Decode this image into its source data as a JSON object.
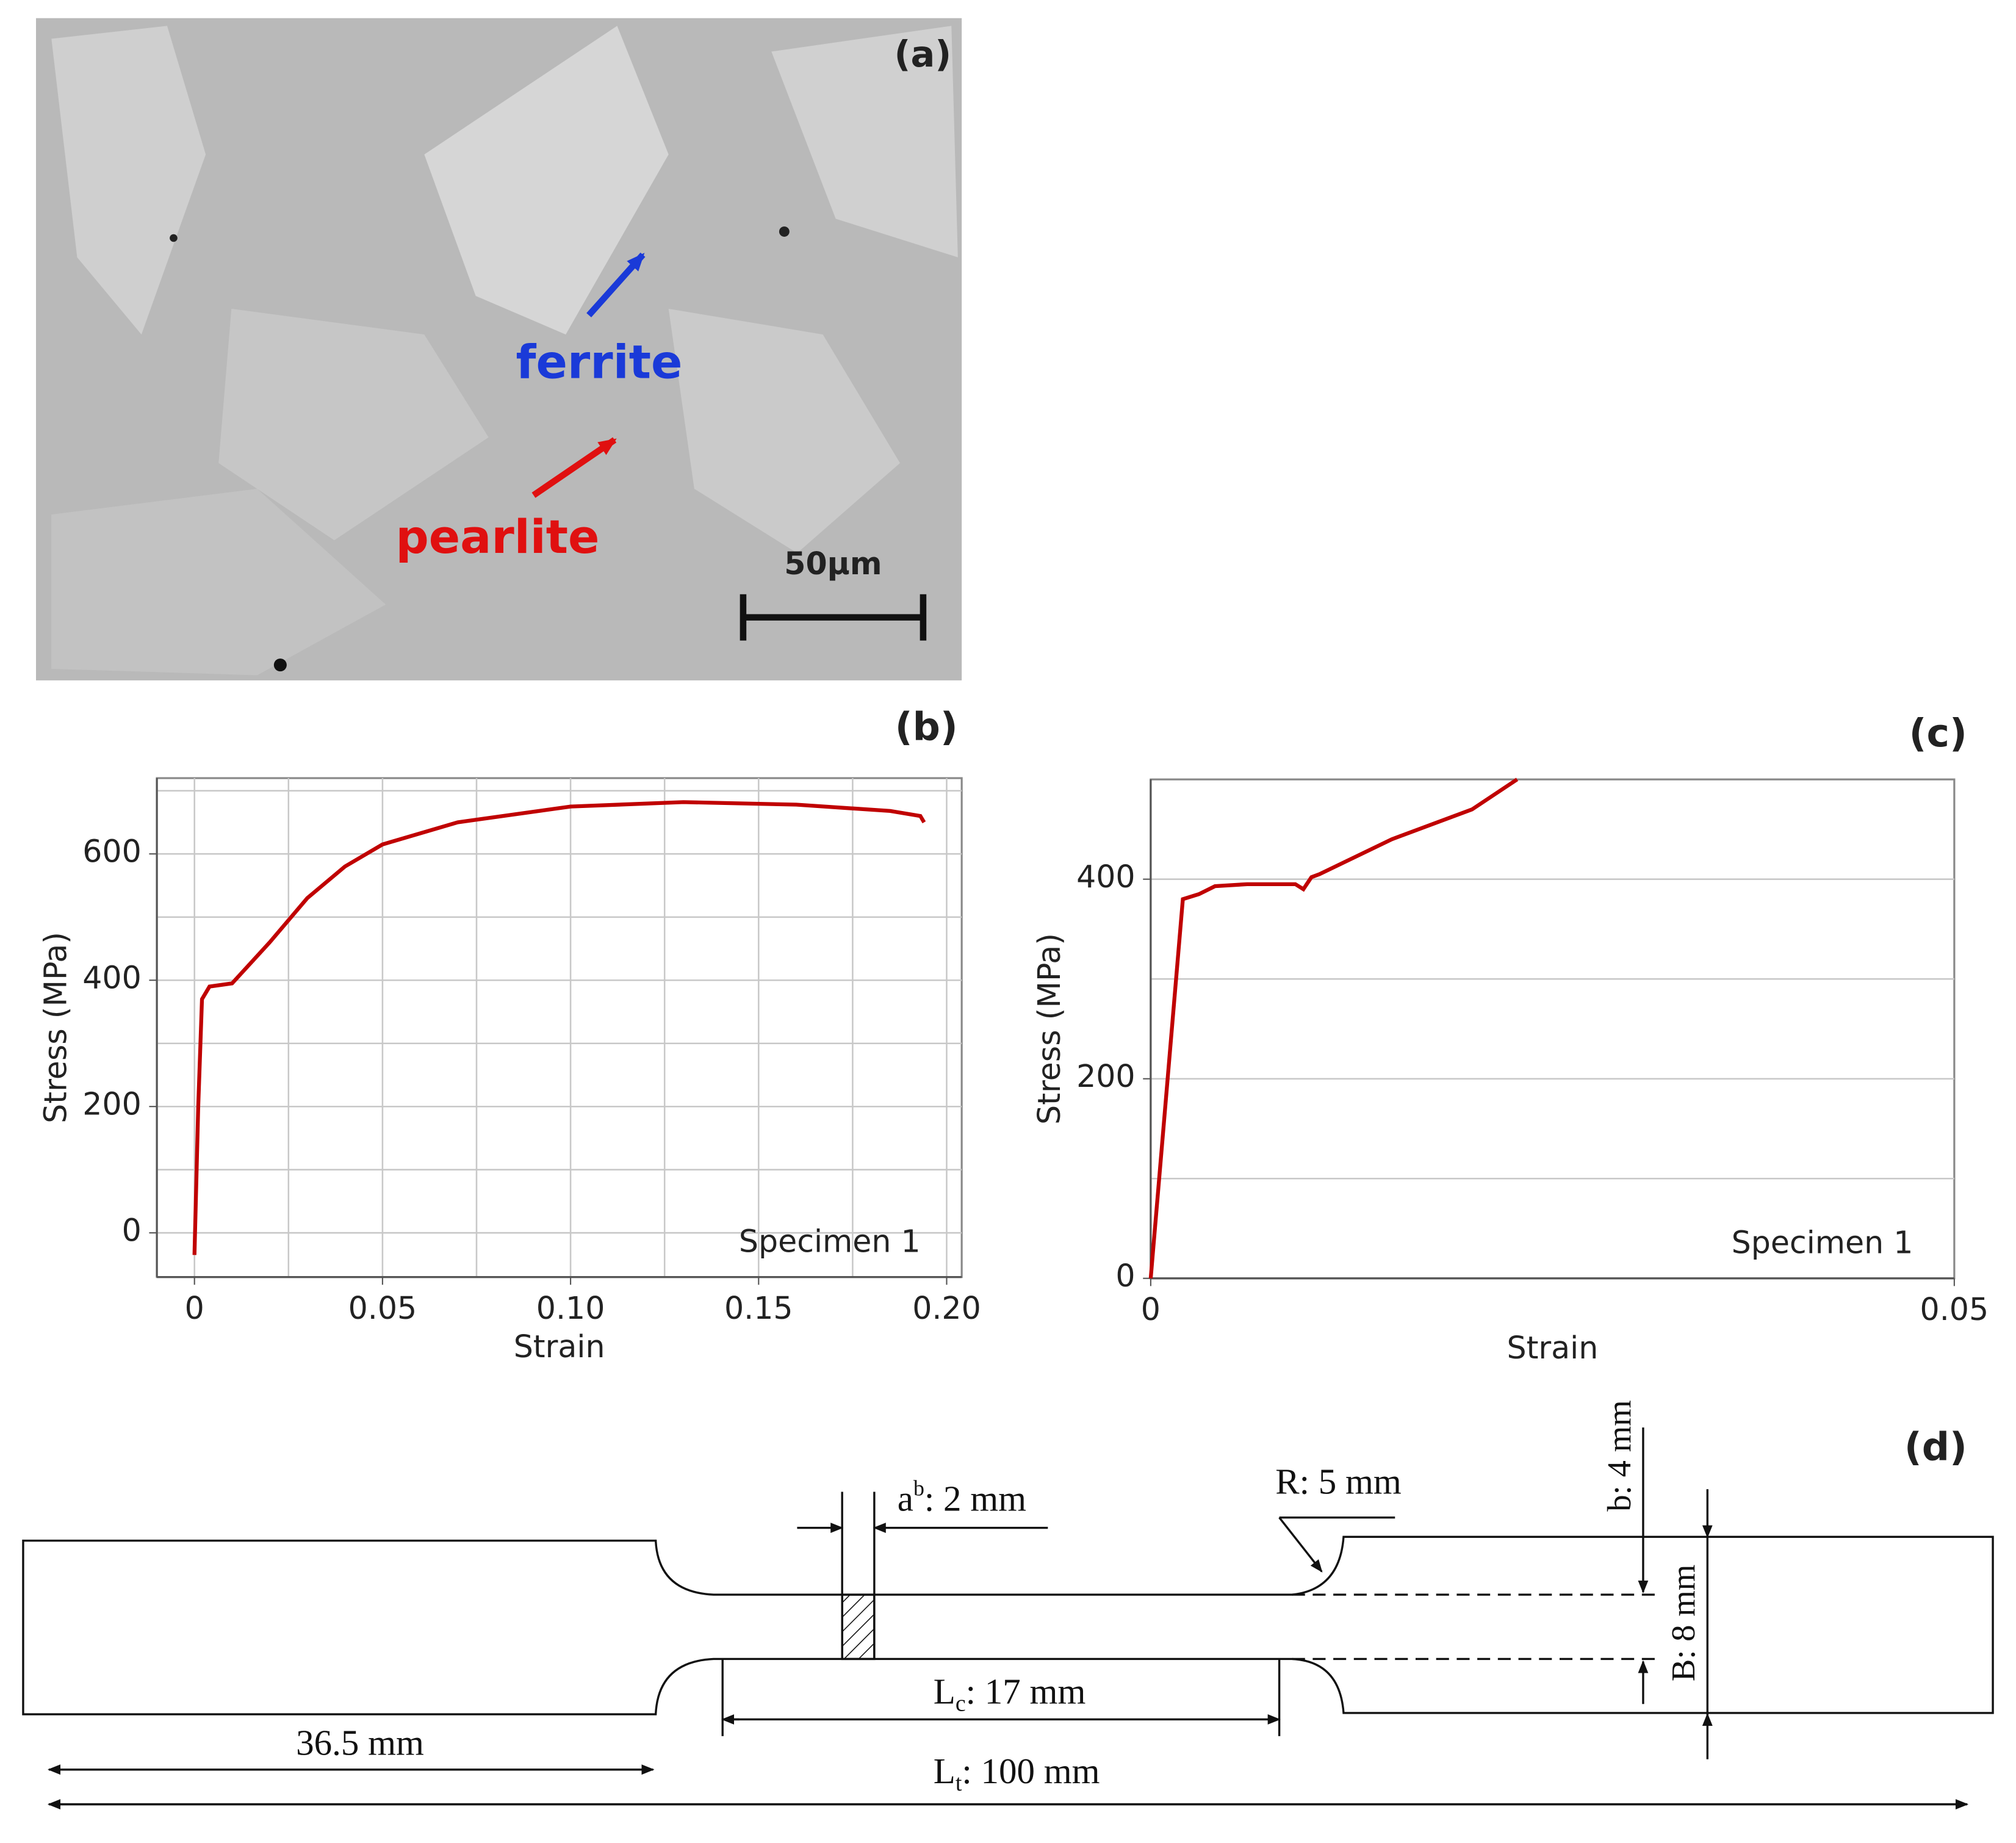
{
  "micrograph": {
    "label": "(a)",
    "ferrite": "ferrite",
    "pearlite": "pearlite",
    "scale_bar": "50μm"
  },
  "chart_data": [
    {
      "type": "line",
      "panel_label": "(b)",
      "x_label": "Strain",
      "y_label": "Stress (MPa)",
      "x": [
        0,
        0.001,
        0.002,
        0.004,
        0.01,
        0.02,
        0.03,
        0.04,
        0.05,
        0.07,
        0.1,
        0.13,
        0.16,
        0.185,
        0.193,
        0.194
      ],
      "series": [
        {
          "name": "Specimen 1",
          "color": "#c00000",
          "values": [
            -35,
            200,
            370,
            390,
            395,
            460,
            530,
            580,
            615,
            650,
            675,
            682,
            678,
            668,
            660,
            650
          ]
        }
      ],
      "xlim": [
        -0.01,
        0.204
      ],
      "ylim": [
        -70,
        720
      ],
      "xticks": [
        0,
        0.05,
        {
          "value": 0.1,
          "label": "0.10"
        },
        0.15,
        {
          "value": 0.2,
          "label": "0.20"
        }
      ],
      "yticks": [
        0,
        200,
        400,
        600
      ],
      "minor_xticks": [
        0.025,
        0.075,
        0.125,
        0.175
      ],
      "minor_yticks": [
        100,
        300,
        500,
        700
      ],
      "grid": true,
      "vertical_grid": true,
      "legend": "lower right"
    },
    {
      "type": "line",
      "panel_label": "(c)",
      "x_label": "Strain",
      "y_label": "Stress (MPa)",
      "x": [
        0,
        0.002,
        0.003,
        0.004,
        0.006,
        0.009,
        0.0095,
        0.01,
        0.0105,
        0.015,
        0.02,
        0.0228
      ],
      "series": [
        {
          "name": "Specimen 1",
          "color": "#c00000",
          "values": [
            0,
            380,
            385,
            393,
            395,
            395,
            390,
            402,
            405,
            440,
            470,
            500
          ]
        }
      ],
      "xlim": [
        0,
        0.05
      ],
      "ylim": [
        0,
        500
      ],
      "xticks": [
        0,
        0.05
      ],
      "yticks": [
        0,
        200,
        400
      ],
      "minor_yticks": [
        100,
        300
      ],
      "grid": true,
      "vertical_grid": false,
      "legend": "lower right"
    }
  ],
  "specimen": {
    "label": "(d)",
    "a_main": "a",
    "a_sup": "b",
    "a_rest": ": 2 mm",
    "r": "R: 5 mm",
    "b_small": "b: 4 mm",
    "b_big": "B: 8 mm",
    "lc_main": "L",
    "lc_sub": "c",
    "lc_rest": ": 17 mm",
    "lt_main": "L",
    "lt_sub": "t",
    "lt_rest": ": 100 mm",
    "grip": "36.5 mm"
  }
}
